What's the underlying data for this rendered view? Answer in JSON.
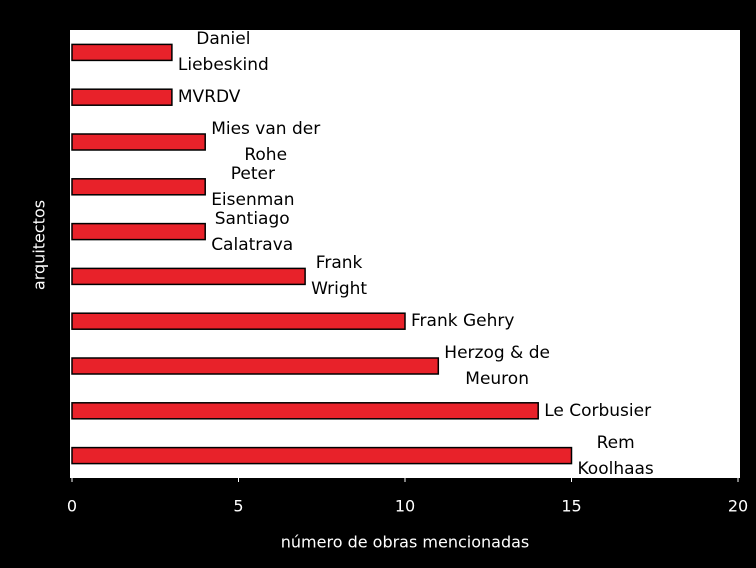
{
  "chart_data": {
    "type": "bar",
    "orientation": "horizontal",
    "xlabel": "número de obras mencionadas",
    "ylabel": "arquitectos",
    "categories": [
      "Daniel\nLiebeskind",
      "MVRDV",
      "Mies van der\nRohe",
      "Peter\nEisenman",
      "Santiago\nCalatrava",
      "Frank\nWright",
      "Frank Gehry",
      "Herzog & de\nMeuron",
      "Le Corbusier",
      "Rem\nKoolhaas"
    ],
    "values": [
      3,
      3,
      4,
      4,
      4,
      7,
      10,
      11,
      14,
      15
    ],
    "color": "#e8222a",
    "xlim": [
      0,
      20
    ],
    "xticks": [
      0,
      5,
      10,
      15,
      20
    ]
  }
}
